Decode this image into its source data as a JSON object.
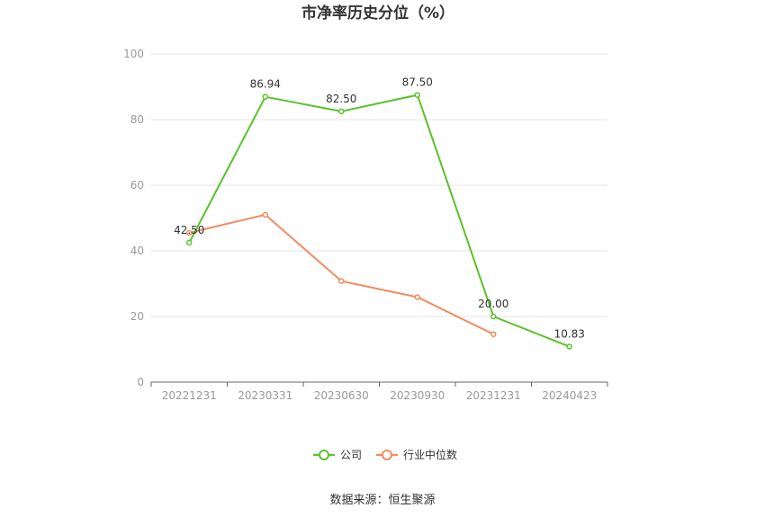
{
  "chart_data": {
    "type": "line",
    "title": "市净率历史分位（%）",
    "categories": [
      "20221231",
      "20230331",
      "20230630",
      "20230930",
      "20231231",
      "20240423"
    ],
    "ylim": [
      0,
      100
    ],
    "yticks": [
      0,
      20,
      40,
      60,
      80,
      100
    ],
    "grid": true,
    "legend_position": "bottom",
    "series": [
      {
        "name": "公司",
        "color": "#5ac229",
        "values": [
          42.5,
          86.94,
          82.5,
          87.5,
          20.0,
          10.83
        ],
        "labels": [
          "42.50",
          "86.94",
          "82.50",
          "87.50",
          "20.00",
          "10.83"
        ]
      },
      {
        "name": "行业中位数",
        "color": "#f28b5e",
        "values": [
          45.5,
          51.0,
          30.8,
          25.9,
          14.6,
          null
        ]
      }
    ]
  },
  "source": "数据来源：恒生聚源"
}
